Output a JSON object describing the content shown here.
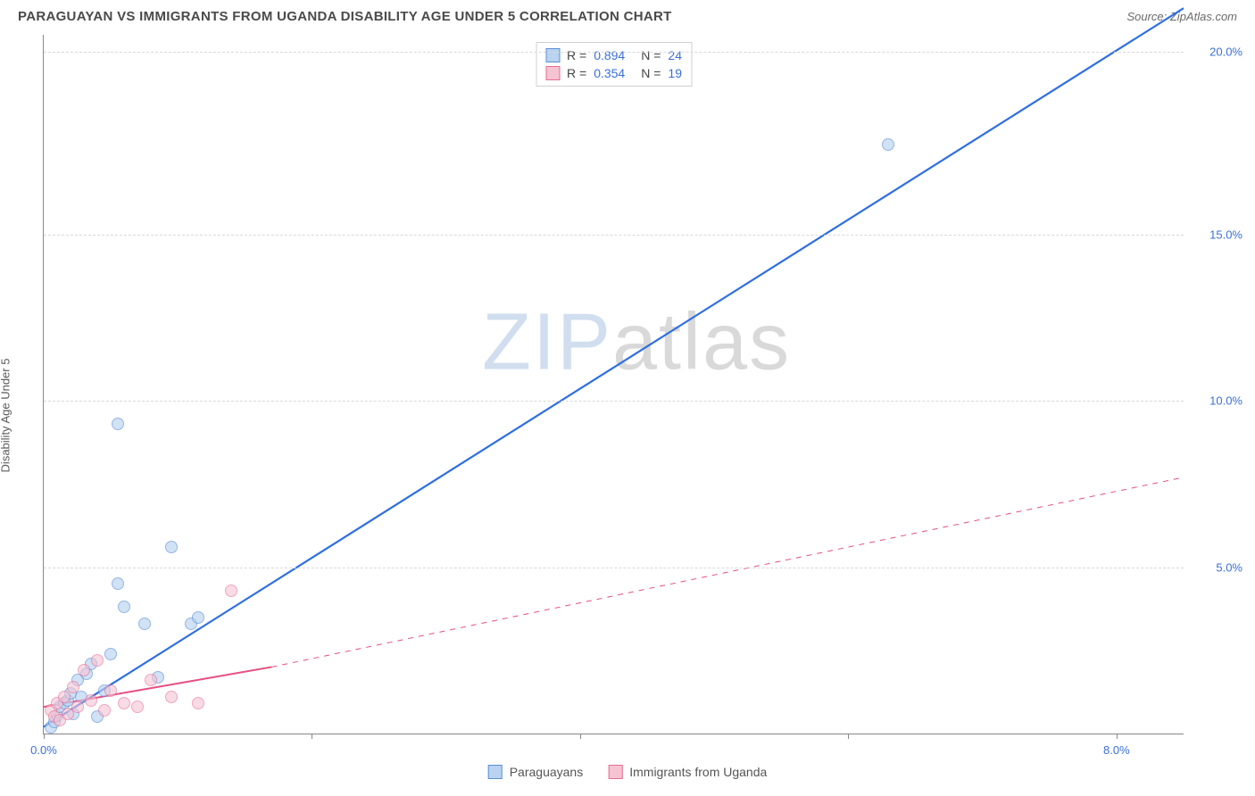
{
  "header": {
    "title": "PARAGUAYAN VS IMMIGRANTS FROM UGANDA DISABILITY AGE UNDER 5 CORRELATION CHART",
    "source": "Source: ZipAtlas.com"
  },
  "y_axis_label": "Disability Age Under 5",
  "watermark": {
    "part1": "ZIP",
    "part2": "atlas"
  },
  "chart": {
    "type": "scatter",
    "background_color": "#ffffff",
    "grid_color": "#d8d8d8",
    "axis_color": "#888888",
    "tick_label_color": "#3a6fd8",
    "xlim": [
      0,
      8.5
    ],
    "ylim": [
      0,
      21
    ],
    "x_ticks": [
      0,
      2,
      4,
      6,
      8
    ],
    "x_tick_labels": [
      "0.0%",
      "",
      "",
      "",
      "8.0%"
    ],
    "y_gridlines": [
      5,
      10,
      15,
      20.5
    ],
    "y_tick_labels": [
      "5.0%",
      "10.0%",
      "15.0%",
      "20.0%"
    ],
    "marker_radius": 7,
    "marker_border_width": 1.2,
    "series": [
      {
        "name": "Paraguayans",
        "fill": "#b9d3f0",
        "stroke": "#5a8fd6",
        "fill_opacity": 0.65,
        "trend": {
          "x1": 0,
          "y1": 0.2,
          "x2": 8.5,
          "y2": 21.8,
          "color": "#2f6fe0",
          "width": 2.2,
          "dash": "none"
        },
        "r_value": "0.894",
        "n_value": "24",
        "points": [
          [
            0.05,
            0.2
          ],
          [
            0.08,
            0.35
          ],
          [
            0.1,
            0.55
          ],
          [
            0.12,
            0.8
          ],
          [
            0.15,
            0.9
          ],
          [
            0.18,
            1.0
          ],
          [
            0.2,
            1.2
          ],
          [
            0.22,
            0.6
          ],
          [
            0.25,
            1.6
          ],
          [
            0.28,
            1.1
          ],
          [
            0.32,
            1.8
          ],
          [
            0.35,
            2.1
          ],
          [
            0.4,
            0.5
          ],
          [
            0.45,
            1.3
          ],
          [
            0.5,
            2.4
          ],
          [
            0.55,
            4.5
          ],
          [
            0.6,
            3.8
          ],
          [
            0.75,
            3.3
          ],
          [
            0.85,
            1.7
          ],
          [
            0.95,
            5.6
          ],
          [
            1.1,
            3.3
          ],
          [
            1.15,
            3.5
          ],
          [
            0.55,
            9.3
          ],
          [
            6.3,
            17.7
          ]
        ]
      },
      {
        "name": "Immigrants from Uganda",
        "fill": "#f5c4d3",
        "stroke": "#e86a94",
        "fill_opacity": 0.6,
        "trend_solid": {
          "x1": 0,
          "y1": 0.8,
          "x2": 1.7,
          "y2": 2.0,
          "color": "#e84e7f",
          "width": 2,
          "dash": "none"
        },
        "trend_dash": {
          "x1": 1.7,
          "y1": 2.0,
          "x2": 8.5,
          "y2": 7.7,
          "color": "#e84e7f",
          "width": 1,
          "dash": "6,6"
        },
        "r_value": "0.354",
        "n_value": "19",
        "points": [
          [
            0.05,
            0.7
          ],
          [
            0.08,
            0.5
          ],
          [
            0.1,
            0.9
          ],
          [
            0.12,
            0.4
          ],
          [
            0.15,
            1.1
          ],
          [
            0.18,
            0.6
          ],
          [
            0.22,
            1.4
          ],
          [
            0.25,
            0.8
          ],
          [
            0.3,
            1.9
          ],
          [
            0.35,
            1.0
          ],
          [
            0.4,
            2.2
          ],
          [
            0.45,
            0.7
          ],
          [
            0.5,
            1.3
          ],
          [
            0.6,
            0.9
          ],
          [
            0.7,
            0.8
          ],
          [
            0.8,
            1.6
          ],
          [
            0.95,
            1.1
          ],
          [
            1.15,
            0.9
          ],
          [
            1.4,
            4.3
          ]
        ]
      }
    ]
  },
  "legend_top": {
    "rows": [
      {
        "swatch_fill": "#b9d3f0",
        "swatch_stroke": "#5a8fd6",
        "r_label": "R =",
        "r_value": "0.894",
        "n_label": "N =",
        "n_value": "24"
      },
      {
        "swatch_fill": "#f5c4d3",
        "swatch_stroke": "#e86a94",
        "r_label": "R =",
        "r_value": "0.354",
        "n_label": "N =",
        "n_value": "19"
      }
    ]
  },
  "legend_bottom": {
    "items": [
      {
        "swatch_fill": "#b9d3f0",
        "swatch_stroke": "#5a8fd6",
        "label": "Paraguayans"
      },
      {
        "swatch_fill": "#f5c4d3",
        "swatch_stroke": "#e86a94",
        "label": "Immigrants from Uganda"
      }
    ]
  }
}
